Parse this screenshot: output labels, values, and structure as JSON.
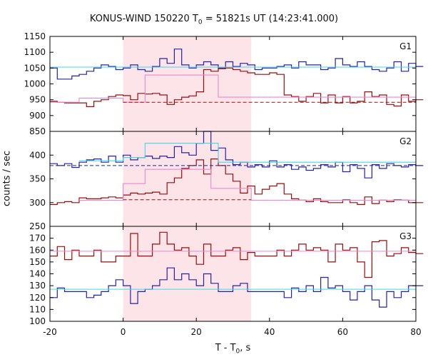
{
  "title": {
    "main": "KONUS-WIND 150220 T",
    "sub": "0",
    "rest": " = 51821s UT (14:23:41.000)"
  },
  "xlabel": {
    "main": "T - T",
    "sub": "0",
    "rest": ", s"
  },
  "ylabel": "counts / sec",
  "chart_data": {
    "type": "line",
    "x_range": [
      -20,
      80
    ],
    "x_ticks": [
      -20,
      0,
      20,
      40,
      60,
      80
    ],
    "highlight_interval": [
      0,
      35
    ],
    "colors": {
      "blue": "#2222aa",
      "red": "#9b0d0d",
      "cyan": "#44d6e8",
      "pink": "#ee88cc",
      "shade": "#fde4e8"
    },
    "panels": [
      {
        "label": "G1",
        "ylim": [
          850,
          1150
        ],
        "yticks": [
          850,
          900,
          950,
          1000,
          1050,
          1100,
          1150
        ],
        "bin_width": 2,
        "x_start": -20,
        "series": [
          {
            "color_key": "blue",
            "style": "step",
            "values": [
              1050,
              1015,
              1015,
              1025,
              1030,
              1040,
              1050,
              1060,
              1055,
              1045,
              1050,
              1060,
              1045,
              1040,
              1055,
              1080,
              1065,
              1110,
              1060,
              1050,
              1060,
              1070,
              1060,
              1050,
              1070,
              1055,
              1065,
              1060,
              1045,
              1050,
              1050,
              1055,
              1060,
              1050,
              1070,
              1060,
              1060,
              1045,
              1050,
              1080,
              1060,
              1055,
              1070,
              1055,
              1045,
              1040,
              1050,
              1070,
              1040,
              1065,
              1055
            ]
          },
          {
            "color_key": "red",
            "style": "step",
            "values": [
              945,
              942,
              940,
              940,
              940,
              928,
              945,
              950,
              960,
              965,
              963,
              950,
              970,
              968,
              970,
              965,
              935,
              950,
              958,
              962,
              975,
              1045,
              1040,
              1048,
              1050,
              1045,
              1040,
              1035,
              1030,
              1030,
              1035,
              1030,
              965,
              960,
              945,
              960,
              970,
              940,
              965,
              940,
              960,
              940,
              945,
              975,
              960,
              965,
              935,
              930,
              965,
              945,
              950
            ]
          },
          {
            "color_key": "cyan",
            "style": "level",
            "x0": -20,
            "x1": 80,
            "value": 1053
          },
          {
            "color_key": "pink",
            "style": "profile",
            "points": [
              [
                -20,
                942
              ],
              [
                -12,
                942
              ],
              [
                -12,
                955
              ],
              [
                0,
                955
              ],
              [
                0,
                942
              ],
              [
                6,
                942
              ],
              [
                6,
                1028
              ],
              [
                26,
                1028
              ],
              [
                26,
                958
              ],
              [
                80,
                958
              ]
            ]
          },
          {
            "color_key": "red",
            "style": "dashed",
            "x0": 0,
            "x1": 80,
            "value": 942
          }
        ]
      },
      {
        "label": "G2",
        "ylim": [
          250,
          450
        ],
        "yticks": [
          250,
          300,
          350,
          400
        ],
        "bin_width": 2,
        "x_start": -20,
        "series": [
          {
            "color_key": "blue",
            "style": "step",
            "values": [
              382,
              378,
              382,
              374,
              385,
              390,
              392,
              385,
              398,
              385,
              400,
              390,
              395,
              398,
              393,
              398,
              395,
              418,
              405,
              400,
              425,
              450,
              410,
              415,
              390,
              380,
              385,
              375,
              380,
              375,
              388,
              375,
              380,
              370,
              375,
              368,
              372,
              380,
              375,
              385,
              365,
              380,
              372,
              352,
              380,
              372,
              382,
              378,
              375,
              380,
              378
            ]
          },
          {
            "color_key": "red",
            "style": "step",
            "values": [
              296,
              300,
              302,
              300,
              310,
              308,
              308,
              310,
              312,
              310,
              316,
              320,
              318,
              320,
              322,
              318,
              342,
              352,
              372,
              378,
              390,
              360,
              392,
              378,
              360,
              345,
              320,
              335,
              318,
              328,
              335,
              340,
              318,
              308,
              305,
              302,
              308,
              302,
              300,
              300,
              306,
              300,
              296,
              312,
              298,
              305,
              302,
              306,
              305,
              300,
              300
            ]
          },
          {
            "color_key": "cyan",
            "style": "profile",
            "points": [
              [
                -12,
                388
              ],
              [
                0,
                388
              ],
              [
                0,
                395
              ],
              [
                6,
                395
              ],
              [
                6,
                425
              ],
              [
                26,
                425
              ],
              [
                26,
                385
              ],
              [
                80,
                385
              ]
            ]
          },
          {
            "color_key": "pink",
            "style": "profile",
            "points": [
              [
                -12,
                305
              ],
              [
                0,
                305
              ],
              [
                0,
                340
              ],
              [
                6,
                340
              ],
              [
                6,
                370
              ],
              [
                24,
                370
              ],
              [
                24,
                330
              ],
              [
                35,
                330
              ],
              [
                35,
                305
              ],
              [
                80,
                305
              ]
            ]
          },
          {
            "color_key": "blue",
            "style": "dashed",
            "x0": -20,
            "x1": 80,
            "value": 378
          },
          {
            "color_key": "red",
            "style": "dashed",
            "x0": 0,
            "x1": 35,
            "value": 306
          }
        ]
      },
      {
        "label": "G3",
        "ylim": [
          100,
          180
        ],
        "yticks": [
          100,
          110,
          120,
          130,
          140,
          150,
          160,
          170
        ],
        "bin_width": 2,
        "x_start": -20,
        "series": [
          {
            "color_key": "red",
            "style": "step",
            "values": [
              155,
              163,
              152,
              160,
              155,
              155,
              160,
              150,
              150,
              155,
              155,
              174,
              155,
              155,
              165,
              175,
              165,
              160,
              162,
              155,
              148,
              165,
              155,
              155,
              160,
              162,
              152,
              158,
              155,
              155,
              155,
              160,
              155,
              160,
              165,
              160,
              162,
              160,
              150,
              165,
              160,
              162,
              150,
              137,
              167,
              168,
              155,
              157,
              162,
              158,
              157
            ]
          },
          {
            "color_key": "blue",
            "style": "step",
            "values": [
              120,
              128,
              125,
              125,
              125,
              120,
              122,
              125,
              130,
              135,
              130,
              115,
              125,
              127,
              130,
              135,
              145,
              135,
              140,
              135,
              130,
              140,
              132,
              125,
              125,
              130,
              132,
              125,
              125,
              125,
              125,
              125,
              120,
              128,
              125,
              130,
              125,
              137,
              128,
              130,
              125,
              118,
              125,
              130,
              118,
              112,
              125,
              120,
              125,
              130,
              130
            ]
          },
          {
            "color_key": "pink",
            "style": "level",
            "x0": -20,
            "x1": 80,
            "value": 159
          },
          {
            "color_key": "cyan",
            "style": "level",
            "x0": -20,
            "x1": 80,
            "value": 127
          }
        ]
      }
    ]
  }
}
